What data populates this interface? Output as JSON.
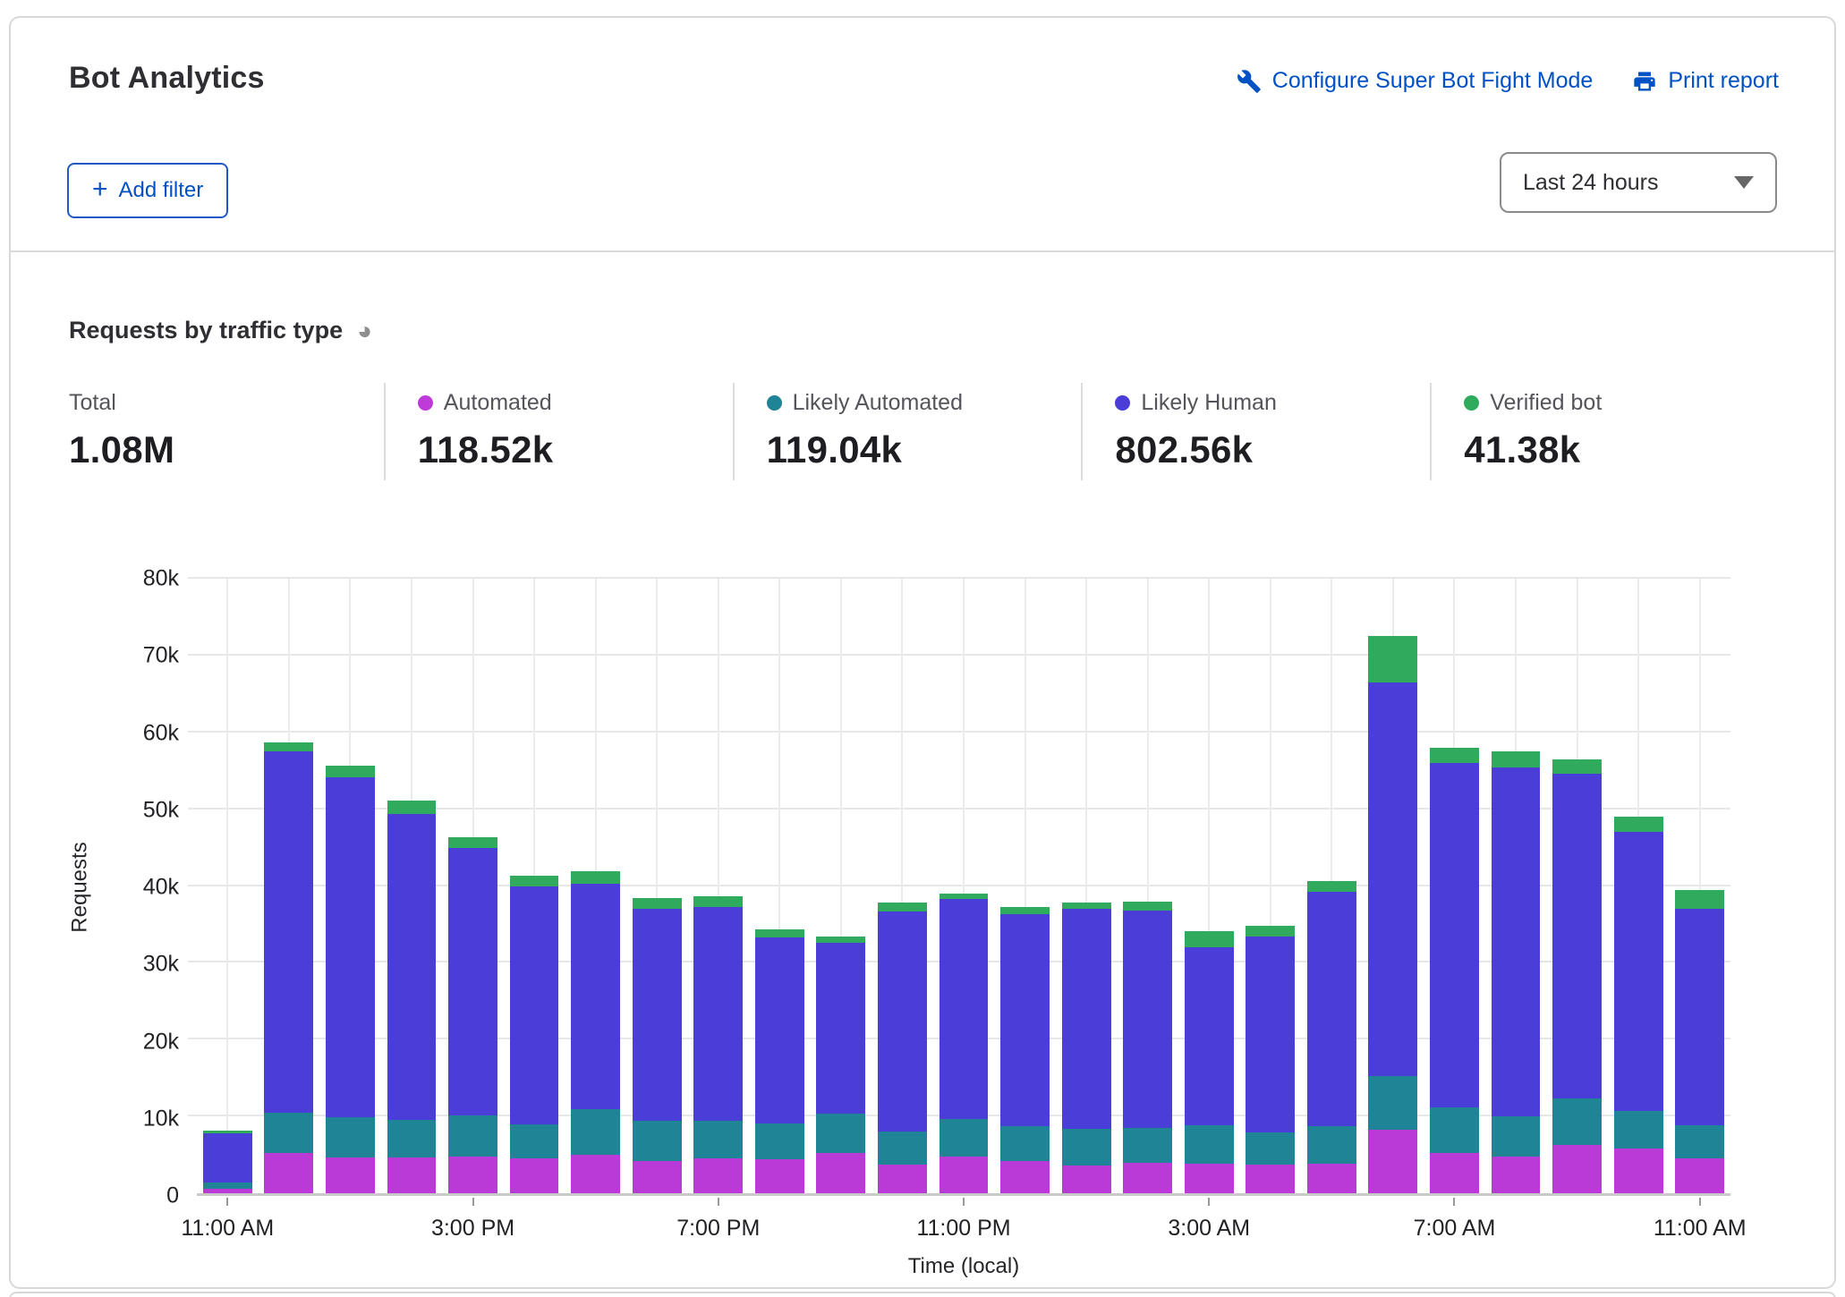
{
  "header": {
    "title": "Bot Analytics",
    "configure_link": "Configure Super Bot Fight Mode",
    "print_link": "Print report",
    "add_filter_label": "Add filter",
    "add_filter_plus": "+",
    "time_range_value": "Last 24 hours"
  },
  "section": {
    "title": "Requests by traffic type",
    "pie_icon_glyph": "◕"
  },
  "stats": [
    {
      "label": "Total",
      "value": "1.08M",
      "dot_color": ""
    },
    {
      "label": "Automated",
      "value": "118.52k",
      "dot_color": "#bf3bd9"
    },
    {
      "label": "Likely Automated",
      "value": "119.04k",
      "dot_color": "#1f8496"
    },
    {
      "label": "Likely Human",
      "value": "802.56k",
      "dot_color": "#4a3dd8"
    },
    {
      "label": "Verified bot",
      "value": "41.38k",
      "dot_color": "#30ab5d"
    }
  ],
  "colors": {
    "link_blue": "#0051c3",
    "automated": "#b93ad7",
    "likely_automated": "#1f8496",
    "likely_human": "#4a3dd8",
    "verified_bot": "#30ab5d"
  },
  "chart_data": {
    "type": "bar",
    "stacked": true,
    "title": "Requests by traffic type",
    "xlabel": "Time (local)",
    "ylabel": "Requests",
    "ylim": [
      0,
      80000
    ],
    "yticks": [
      0,
      10000,
      20000,
      30000,
      40000,
      50000,
      60000,
      70000,
      80000
    ],
    "grid": true,
    "bar_count": 25,
    "xticks": [
      {
        "index": 0,
        "label": "11:00 AM"
      },
      {
        "index": 4,
        "label": "3:00 PM"
      },
      {
        "index": 8,
        "label": "7:00 PM"
      },
      {
        "index": 12,
        "label": "11:00 PM"
      },
      {
        "index": 16,
        "label": "3:00 AM"
      },
      {
        "index": 20,
        "label": "7:00 AM"
      },
      {
        "index": 24,
        "label": "11:00 AM"
      }
    ],
    "series": [
      {
        "name": "Automated",
        "color": "#b93ad7",
        "values": [
          600,
          5300,
          4700,
          4700,
          4800,
          4500,
          5000,
          4200,
          4600,
          4400,
          5300,
          3700,
          4800,
          4200,
          3600,
          4000,
          3900,
          3700,
          3800,
          8300,
          5300,
          4800,
          6300,
          5800,
          4500
        ]
      },
      {
        "name": "Likely Automated",
        "color": "#1f8496",
        "values": [
          800,
          5200,
          5200,
          4900,
          5300,
          4500,
          5900,
          5200,
          4800,
          4700,
          5100,
          4300,
          4900,
          4500,
          4800,
          4500,
          4900,
          4200,
          4900,
          7000,
          5900,
          5200,
          6000,
          4900,
          4300
        ]
      },
      {
        "name": "Likely Human",
        "color": "#4a3dd8",
        "values": [
          6400,
          47000,
          44300,
          39800,
          34800,
          31000,
          29400,
          27600,
          27900,
          24200,
          22200,
          28700,
          28600,
          27600,
          28600,
          28300,
          23200,
          25500,
          30500,
          51200,
          44800,
          45400,
          42300,
          36300,
          28200
        ]
      },
      {
        "name": "Verified bot",
        "color": "#30ab5d",
        "values": [
          300,
          1200,
          1500,
          1700,
          1500,
          1400,
          1600,
          1400,
          1400,
          1100,
          800,
          1100,
          700,
          1000,
          900,
          1200,
          2100,
          1400,
          1400,
          6000,
          2000,
          2100,
          1900,
          2000,
          2500
        ]
      }
    ]
  }
}
